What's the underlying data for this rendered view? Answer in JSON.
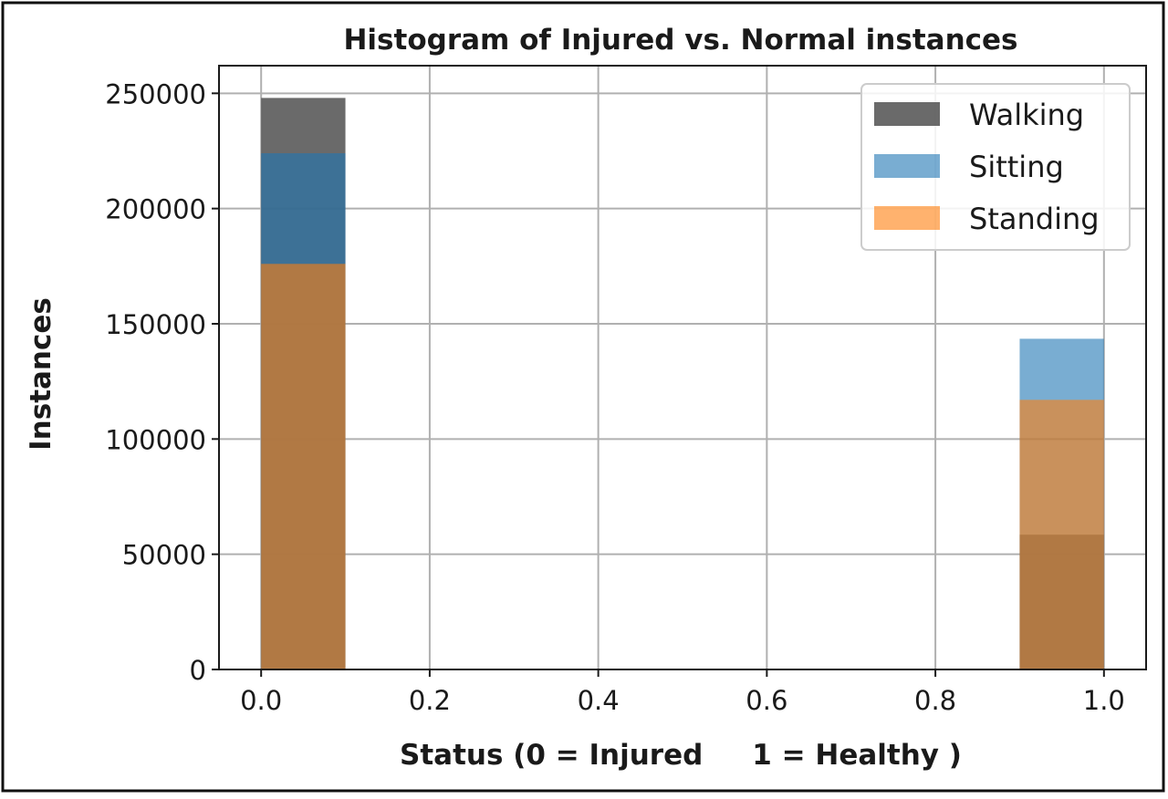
{
  "chart_data": {
    "type": "bar",
    "title": "Histogram of Injured vs. Normal instances",
    "xlabel": "Status (0 = Injured     1 = Healthy )",
    "ylabel": "Instances",
    "xlim": [
      -0.05,
      1.05
    ],
    "ylim": [
      0,
      262000
    ],
    "x_ticks": [
      "0.0",
      "0.2",
      "0.4",
      "0.6",
      "0.8",
      "1.0"
    ],
    "x_tick_values": [
      0,
      0.2,
      0.4,
      0.6,
      0.8,
      1.0
    ],
    "y_ticks": [
      "0",
      "50000",
      "100000",
      "150000",
      "200000",
      "250000"
    ],
    "y_tick_values": [
      0,
      50000,
      100000,
      150000,
      200000,
      250000
    ],
    "grid": true,
    "legend_position": "top-right",
    "bin_edges": [
      [
        0.0,
        0.1
      ],
      [
        0.9,
        1.0
      ]
    ],
    "series": [
      {
        "name": "Walking",
        "color": "#555555",
        "opacity": 0.88,
        "values": [
          248000,
          58500
        ]
      },
      {
        "name": "Sitting",
        "color": "#1f77b4",
        "opacity": 0.6,
        "values": [
          224000,
          143500
        ]
      },
      {
        "name": "Standing",
        "color": "#ff7f0e",
        "opacity": 0.6,
        "values": [
          176000,
          117000
        ]
      }
    ]
  }
}
